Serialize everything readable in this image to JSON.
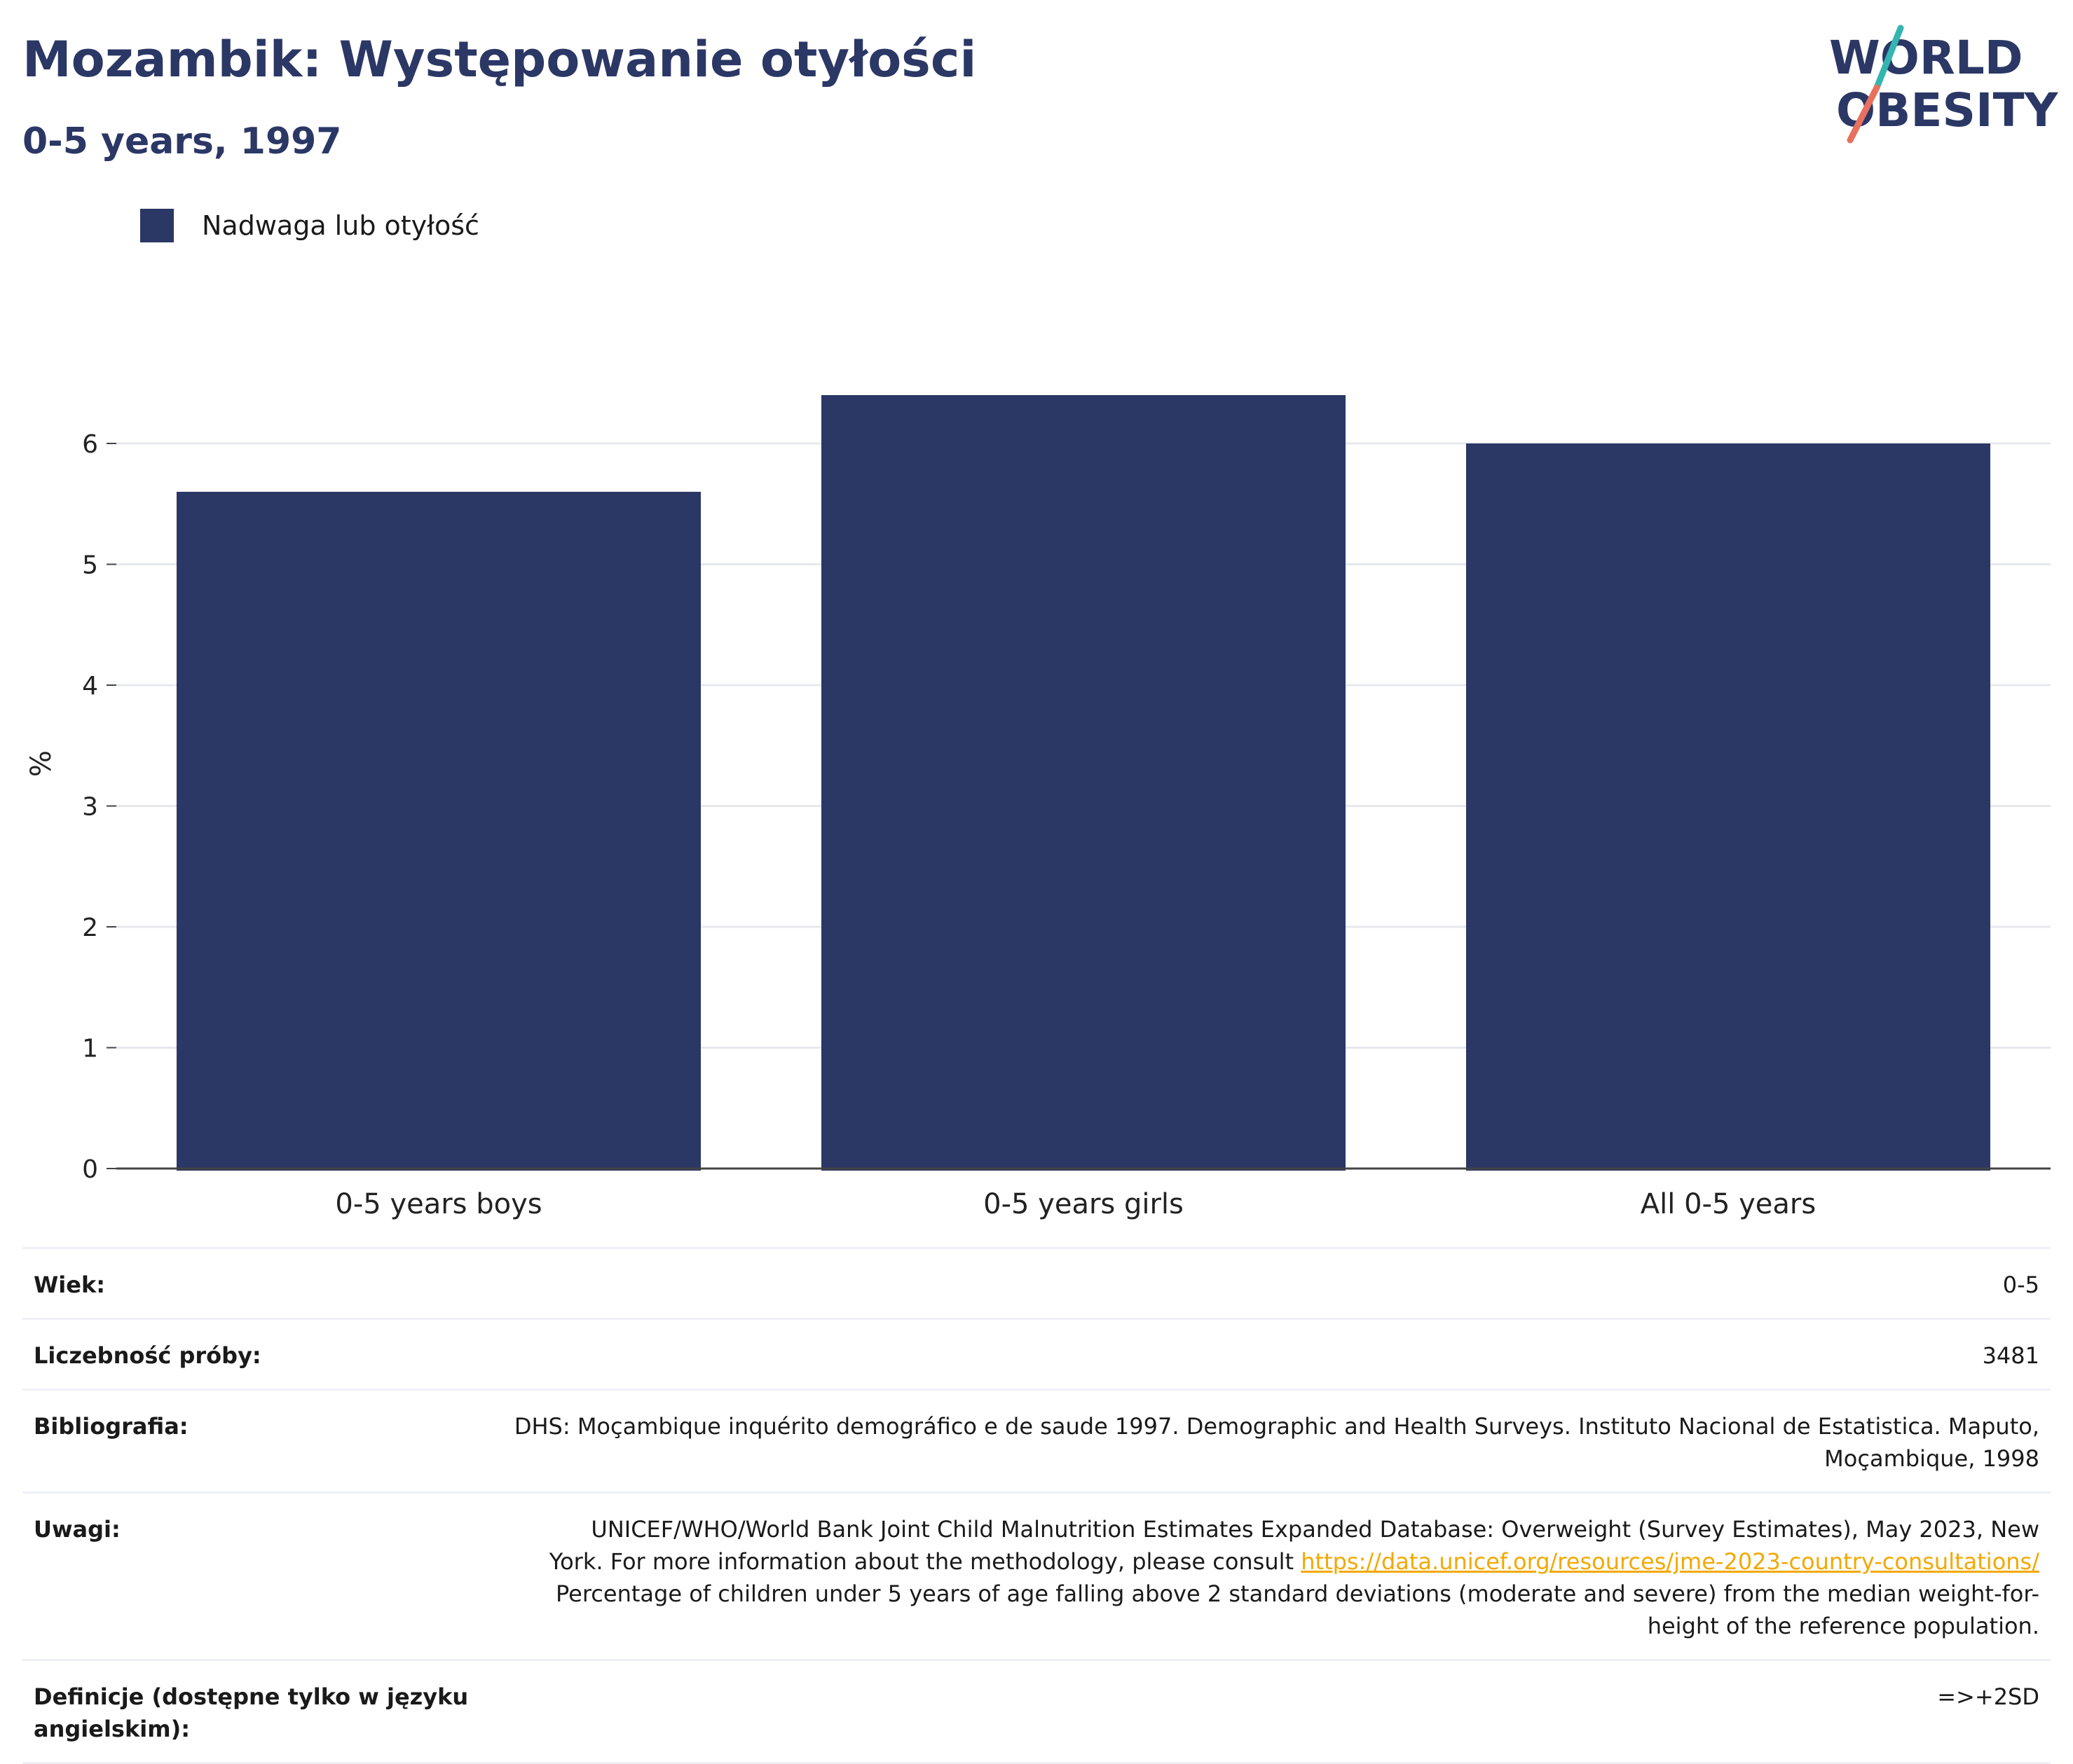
{
  "header": {
    "title": "Mozambik: Występowanie otyłości",
    "subtitle": "0-5 years, 1997"
  },
  "logo": {
    "line1": "WORLD",
    "line2": "OBESITY"
  },
  "legend": {
    "label": "Nadwaga lub otyłość"
  },
  "chart_data": {
    "type": "bar",
    "categories": [
      "0-5 years boys",
      "0-5 years girls",
      "All 0-5 years"
    ],
    "series": [
      {
        "name": "Nadwaga lub otyłość",
        "values": [
          5.6,
          6.4,
          6.0
        ]
      }
    ],
    "ylabel": "%",
    "xlabel": "",
    "ylim": [
      0,
      7
    ],
    "yticks": [
      "0",
      "1",
      "2",
      "3",
      "4",
      "5",
      "6"
    ],
    "grid": true,
    "legend_position": "top-left",
    "bar_color": "#2b3765"
  },
  "info": {
    "age": {
      "label": "Wiek:",
      "value": "0-5"
    },
    "sample": {
      "label": "Liczebność próby:",
      "value": "3481"
    },
    "bibliography": {
      "label": "Bibliografia:",
      "value_line1": "DHS: Moçambique inquérito demográfico e de saude 1997. Demographic and Health Surveys. Instituto Nacional de Estatistica. Maputo,",
      "value_line2": "Moçambique, 1998"
    },
    "notes": {
      "label": "Uwagi:",
      "line1": "UNICEF/WHO/World Bank Joint Child Malnutrition Estimates Expanded Database: Overweight (Survey Estimates), May 2023, New",
      "line2_prefix": "York. For more information about the methodology, please consult ",
      "link": "https://data.unicef.org/resources/jme-2023-country-consultations/",
      "line3": "Percentage of children under 5 years of age falling above 2 standard deviations (moderate and severe) from the median weight-for-",
      "line4": "height of the reference population."
    },
    "definitions": {
      "label": "Definicje (dostępne tylko w języku angielskim):",
      "value": "=>+2SD"
    }
  }
}
